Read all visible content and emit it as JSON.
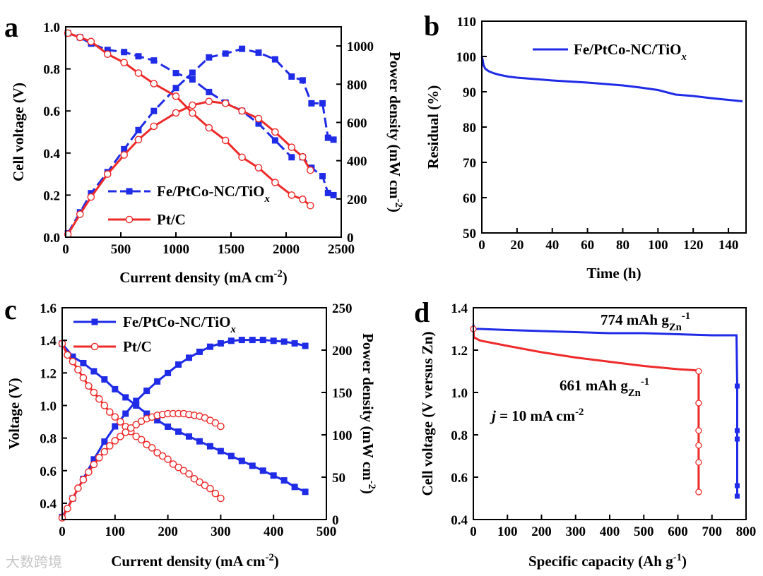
{
  "watermark": "大数跨境",
  "colors": {
    "blue": "#1f2be6",
    "red": "#ee2a2a"
  },
  "chart_data": [
    {
      "panel": "a",
      "type": "line",
      "xlabel": "Current density (mA cm",
      "xlabel_sup": "-2",
      "xlabel_end": ")",
      "ylabel_left": "Cell voltage (V)",
      "ylabel_right": "Power density (mW cm",
      "ylabel_right_sup": "-2",
      "ylabel_right_end": ")",
      "xlim": [
        0,
        2500
      ],
      "ylim_left": [
        0,
        1.0
      ],
      "ylim_right": [
        0,
        1100
      ],
      "xticks": [
        "0",
        "500",
        "1000",
        "1500",
        "2000",
        "2500"
      ],
      "yticks_left": [
        "0.0",
        "0.2",
        "0.4",
        "0.6",
        "0.8",
        "1.0"
      ],
      "yticks_right": [
        "0",
        "200",
        "400",
        "600",
        "800",
        "1000"
      ],
      "legend": [
        {
          "label": "Fe/PtCo-NC/TiO",
          "sub": "x",
          "color": "blue",
          "marker": "square"
        },
        {
          "label": "Pt/C",
          "color": "red",
          "marker": "circle"
        }
      ],
      "series": [
        {
          "name": "Fe/PtCo-NC/TiOx voltage",
          "axis": "left",
          "color": "blue",
          "marker": "square",
          "x": [
            20,
            130,
            230,
            380,
            530,
            660,
            800,
            1000,
            1150,
            1300,
            1450,
            1600,
            1750,
            1900,
            2050,
            2150,
            2230,
            2330,
            2380,
            2430
          ],
          "y": [
            0.97,
            0.95,
            0.92,
            0.89,
            0.88,
            0.86,
            0.84,
            0.78,
            0.75,
            0.69,
            0.64,
            0.6,
            0.54,
            0.46,
            0.38,
            0.38,
            0.33,
            0.29,
            0.21,
            0.2
          ]
        },
        {
          "name": "Fe/PtCo-NC/TiOx power",
          "axis": "right",
          "color": "blue",
          "marker": "square",
          "x": [
            20,
            130,
            230,
            380,
            530,
            660,
            800,
            1000,
            1150,
            1300,
            1450,
            1600,
            1750,
            1900,
            2050,
            2150,
            2230,
            2330,
            2380,
            2430
          ],
          "y": [
            20,
            130,
            230,
            340,
            460,
            560,
            660,
            780,
            860,
            940,
            960,
            985,
            965,
            930,
            840,
            820,
            700,
            700,
            520,
            510
          ]
        },
        {
          "name": "Pt/C voltage",
          "axis": "left",
          "color": "red",
          "marker": "circle",
          "x": [
            20,
            130,
            230,
            380,
            530,
            660,
            800,
            1000,
            1150,
            1300,
            1450,
            1600,
            1750,
            1900,
            2050,
            2150,
            2220
          ],
          "y": [
            0.97,
            0.95,
            0.93,
            0.87,
            0.83,
            0.78,
            0.73,
            0.67,
            0.59,
            0.52,
            0.46,
            0.38,
            0.33,
            0.26,
            0.2,
            0.18,
            0.15
          ]
        },
        {
          "name": "Pt/C power",
          "axis": "right",
          "color": "red",
          "marker": "circle",
          "x": [
            20,
            130,
            230,
            380,
            530,
            660,
            800,
            1000,
            1150,
            1300,
            1450,
            1600,
            1750,
            1900,
            2050,
            2150,
            2220
          ],
          "y": [
            15,
            120,
            210,
            330,
            430,
            510,
            580,
            650,
            690,
            710,
            700,
            660,
            620,
            550,
            470,
            420,
            350
          ]
        }
      ]
    },
    {
      "panel": "b",
      "type": "line",
      "xlabel": "Time (h)",
      "ylabel": "Residual (%)",
      "xlim": [
        0,
        150
      ],
      "ylim": [
        50,
        110
      ],
      "xticks": [
        "0",
        "20",
        "40",
        "60",
        "80",
        "100",
        "120",
        "140"
      ],
      "yticks": [
        "50",
        "60",
        "70",
        "80",
        "90",
        "100",
        "110"
      ],
      "legend": [
        {
          "label": "Fe/PtCo-NC/TiO",
          "sub": "x",
          "color": "blue"
        }
      ],
      "series": [
        {
          "name": "Fe/PtCo-NC/TiOx",
          "color": "blue",
          "x": [
            0,
            0.5,
            1,
            2,
            4,
            7,
            10,
            15,
            20,
            30,
            40,
            50,
            60,
            70,
            80,
            90,
            100,
            110,
            120,
            130,
            140,
            148
          ],
          "y": [
            100,
            99,
            97.5,
            96.5,
            95.8,
            95.2,
            94.8,
            94.3,
            94,
            93.6,
            93.2,
            92.9,
            92.6,
            92.2,
            91.8,
            91.2,
            90.5,
            89.2,
            88.8,
            88.2,
            87.7,
            87.3
          ]
        }
      ]
    },
    {
      "panel": "c",
      "type": "line",
      "xlabel": "Current density (mA cm",
      "xlabel_sup": "-2",
      "xlabel_end": ")",
      "ylabel_left": "Voltage (V)",
      "ylabel_right": "Power density (mW cm",
      "ylabel_right_sup": "-2",
      "ylabel_right_end": ")",
      "xlim": [
        0,
        500
      ],
      "ylim_left": [
        0.3,
        1.6
      ],
      "ylim_right": [
        0,
        250
      ],
      "xticks": [
        "0",
        "100",
        "200",
        "300",
        "400",
        "500"
      ],
      "yticks_left": [
        "0.4",
        "0.6",
        "0.8",
        "1.0",
        "1.2",
        "1.4",
        "1.6"
      ],
      "yticks_right": [
        "0",
        "50",
        "100",
        "150",
        "200",
        "250"
      ],
      "legend": [
        {
          "label": "Fe/PtCo-NC/TiO",
          "sub": "x",
          "color": "blue",
          "marker": "square"
        },
        {
          "label": "Pt/C",
          "color": "red",
          "marker": "circle"
        }
      ],
      "series": [
        {
          "name": "Fe/PtCo-NC/TiOx voltage",
          "axis": "left",
          "color": "blue",
          "marker": "square",
          "x": [
            0,
            20,
            40,
            60,
            80,
            100,
            120,
            140,
            160,
            180,
            200,
            220,
            240,
            260,
            280,
            300,
            320,
            340,
            360,
            380,
            400,
            420,
            440,
            460
          ],
          "y": [
            1.38,
            1.3,
            1.26,
            1.21,
            1.16,
            1.1,
            1.05,
            1.0,
            0.95,
            0.91,
            0.87,
            0.84,
            0.81,
            0.78,
            0.75,
            0.72,
            0.69,
            0.66,
            0.63,
            0.6,
            0.57,
            0.54,
            0.5,
            0.47
          ]
        },
        {
          "name": "Fe/PtCo-NC/TiOx power",
          "axis": "left_power",
          "color": "blue",
          "marker": "square",
          "x": [
            0,
            20,
            40,
            60,
            80,
            100,
            120,
            140,
            160,
            180,
            200,
            220,
            240,
            260,
            280,
            300,
            320,
            340,
            360,
            380,
            400,
            420,
            440,
            460
          ],
          "y": [
            3,
            25,
            48,
            71,
            92,
            110,
            125,
            140,
            152,
            163,
            173,
            183,
            191,
            198,
            204,
            208,
            211,
            212,
            212,
            212,
            211,
            210,
            208,
            205
          ]
        },
        {
          "name": "Pt/C voltage",
          "axis": "left",
          "color": "red",
          "marker": "circle",
          "x": [
            0,
            10,
            20,
            30,
            40,
            50,
            60,
            70,
            80,
            90,
            100,
            110,
            120,
            130,
            140,
            150,
            160,
            170,
            180,
            190,
            200,
            210,
            220,
            230,
            240,
            250,
            260,
            270,
            280,
            290,
            300
          ],
          "y": [
            1.38,
            1.31,
            1.27,
            1.22,
            1.17,
            1.12,
            1.08,
            1.04,
            1.0,
            0.96,
            0.93,
            0.9,
            0.87,
            0.84,
            0.81,
            0.79,
            0.76,
            0.74,
            0.71,
            0.69,
            0.67,
            0.64,
            0.62,
            0.6,
            0.58,
            0.55,
            0.53,
            0.51,
            0.49,
            0.46,
            0.43
          ]
        },
        {
          "name": "Pt/C power",
          "axis": "left_power",
          "color": "red",
          "marker": "circle",
          "x": [
            0,
            10,
            20,
            30,
            40,
            50,
            60,
            70,
            80,
            90,
            100,
            110,
            120,
            130,
            140,
            150,
            160,
            170,
            180,
            190,
            200,
            210,
            220,
            230,
            240,
            250,
            260,
            270,
            280,
            290,
            300
          ],
          "y": [
            2,
            13,
            25,
            37,
            47,
            56,
            65,
            73,
            80,
            87,
            93,
            98,
            103,
            108,
            112,
            116,
            119,
            121,
            123,
            124,
            125,
            125,
            125,
            125,
            124,
            123,
            122,
            120,
            117,
            114,
            110
          ]
        }
      ]
    },
    {
      "panel": "d",
      "type": "line",
      "xlabel": "Specific capacity (Ah g",
      "xlabel_sup": "-1",
      "xlabel_end": ")",
      "ylabel": "Cell voltage (V versus Zn)",
      "xlim": [
        0,
        800
      ],
      "ylim": [
        0.4,
        1.4
      ],
      "xticks": [
        "0",
        "100",
        "200",
        "300",
        "400",
        "500",
        "600",
        "700",
        "800"
      ],
      "yticks": [
        "0.4",
        "0.6",
        "0.8",
        "1.0",
        "1.2",
        "1.4"
      ],
      "annotations": [
        {
          "text": "774 mAh g",
          "sub": "Zn",
          "sup": "-1"
        },
        {
          "text": "661 mAh g",
          "sub": "Zn",
          "sup": "-1"
        },
        {
          "text": "j",
          "rest": " = 10 mA cm",
          "sup": "-2"
        }
      ],
      "series": [
        {
          "name": "Fe/PtCo-NC/TiOx",
          "color": "blue",
          "x": [
            0,
            2,
            20,
            100,
            200,
            300,
            400,
            500,
            600,
            700,
            760,
            772,
            774,
            774,
            774,
            774,
            774
          ],
          "y": [
            1.32,
            1.3,
            1.3,
            1.295,
            1.29,
            1.285,
            1.28,
            1.28,
            1.275,
            1.27,
            1.27,
            1.27,
            1.03,
            0.82,
            0.78,
            0.56,
            0.51
          ]
        },
        {
          "name": "Pt/C",
          "color": "red",
          "x": [
            0,
            2,
            20,
            100,
            200,
            300,
            400,
            500,
            600,
            650,
            659,
            661,
            661,
            661,
            661,
            661,
            661
          ],
          "y": [
            1.3,
            1.26,
            1.245,
            1.22,
            1.19,
            1.165,
            1.145,
            1.125,
            1.11,
            1.105,
            1.1,
            1.1,
            0.95,
            0.82,
            0.75,
            0.67,
            0.53
          ]
        }
      ]
    }
  ]
}
